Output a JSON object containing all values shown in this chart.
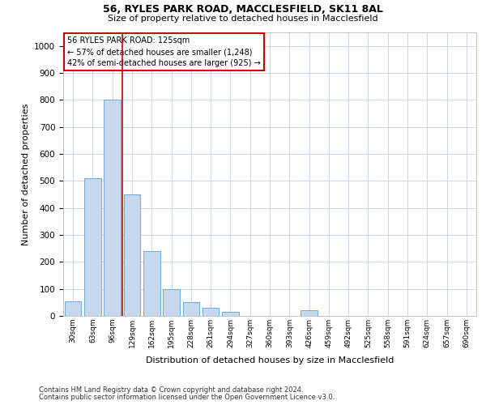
{
  "title_line1": "56, RYLES PARK ROAD, MACCLESFIELD, SK11 8AL",
  "title_line2": "Size of property relative to detached houses in Macclesfield",
  "xlabel": "Distribution of detached houses by size in Macclesfield",
  "ylabel": "Number of detached properties",
  "footnote_line1": "Contains HM Land Registry data © Crown copyright and database right 2024.",
  "footnote_line2": "Contains public sector information licensed under the Open Government Licence v3.0.",
  "bar_labels": [
    "30sqm",
    "63sqm",
    "96sqm",
    "129sqm",
    "162sqm",
    "195sqm",
    "228sqm",
    "261sqm",
    "294sqm",
    "327sqm",
    "360sqm",
    "393sqm",
    "426sqm",
    "459sqm",
    "492sqm",
    "525sqm",
    "558sqm",
    "591sqm",
    "624sqm",
    "657sqm",
    "690sqm"
  ],
  "bar_values": [
    55,
    510,
    800,
    450,
    240,
    100,
    50,
    30,
    15,
    0,
    0,
    0,
    20,
    0,
    0,
    0,
    0,
    0,
    0,
    0,
    0
  ],
  "bar_color": "#c5d8ed",
  "bar_edge_color": "#5a9fd4",
  "vline_x": 2.5,
  "vline_color": "#cc0000",
  "annotation_text": "56 RYLES PARK ROAD: 125sqm\n← 57% of detached houses are smaller (1,248)\n42% of semi-detached houses are larger (925) →",
  "annotation_box_facecolor": "#ffffff",
  "annotation_box_edgecolor": "#cc0000",
  "ylim": [
    0,
    1050
  ],
  "ytick_interval": 100,
  "background_color": "#ffffff",
  "grid_color": "#c8d0dc",
  "title1_fontsize": 9,
  "title2_fontsize": 8,
  "ylabel_fontsize": 8,
  "xlabel_fontsize": 8,
  "annotation_fontsize": 7,
  "footnote_fontsize": 6
}
